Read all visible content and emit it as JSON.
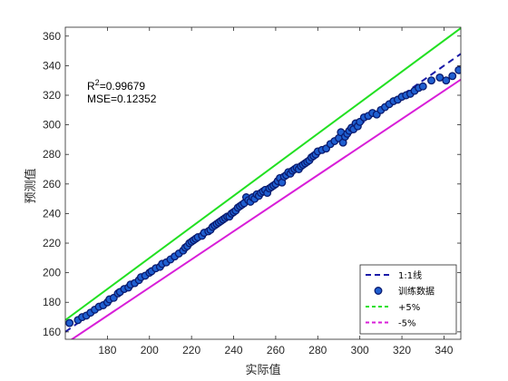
{
  "chart_data": {
    "type": "scatter",
    "title": "",
    "xlabel": "实际值",
    "ylabel": "预测值",
    "xlim": [
      160,
      348
    ],
    "ylim": [
      155,
      366
    ],
    "xticks": [
      180,
      200,
      220,
      240,
      260,
      280,
      300,
      320,
      340
    ],
    "yticks": [
      160,
      180,
      200,
      220,
      240,
      260,
      280,
      300,
      320,
      340,
      360
    ],
    "grid": false,
    "legend_position": "bottom-right",
    "annotations": {
      "r2_prefix": "R",
      "r2_sup": "2",
      "r2_value": "=0.99679",
      "mse": "MSE=0.12352"
    },
    "series": [
      {
        "name": "1:1线",
        "kind": "line",
        "style": "dashed",
        "color": "#1a1aa8",
        "x": [
          160,
          348
        ],
        "y": [
          160,
          348
        ]
      },
      {
        "name": "训练数据",
        "kind": "scatter",
        "color": "#1f5fd0",
        "edge_color": "#0a1a6e",
        "x": [
          162,
          166,
          168,
          170,
          172,
          174,
          176,
          178,
          180,
          181,
          183,
          185,
          186,
          188,
          190,
          191,
          193,
          195,
          196,
          198,
          200,
          201,
          203,
          205,
          206,
          208,
          210,
          212,
          214,
          216,
          217,
          218,
          219,
          220,
          221,
          222,
          223,
          225,
          226,
          228,
          229,
          230,
          231,
          232,
          233,
          234,
          235,
          236,
          237,
          238,
          239,
          240,
          241,
          242,
          243,
          244,
          245,
          246,
          247,
          248,
          249,
          250,
          251,
          252,
          253,
          254,
          255,
          256,
          257,
          258,
          259,
          260,
          261,
          262,
          263,
          264,
          265,
          266,
          267,
          268,
          269,
          270,
          271,
          272,
          273,
          274,
          275,
          276,
          277,
          278,
          279,
          280,
          282,
          284,
          286,
          288,
          290,
          291,
          292,
          293,
          294,
          295,
          296,
          297,
          298,
          299,
          300,
          302,
          304,
          306,
          308,
          310,
          312,
          314,
          316,
          318,
          320,
          322,
          324,
          326,
          328,
          330,
          334,
          338,
          341,
          344,
          347
        ],
        "y": [
          166,
          168,
          170,
          171,
          173,
          175,
          177,
          178,
          180,
          182,
          183,
          186,
          187,
          189,
          190,
          192,
          193,
          195,
          197,
          198,
          200,
          201,
          203,
          204,
          206,
          207,
          209,
          211,
          213,
          215,
          217,
          218,
          220,
          221,
          222,
          223,
          224,
          225,
          227,
          228,
          229,
          231,
          232,
          233,
          234,
          235,
          236,
          237,
          238,
          238,
          240,
          241,
          242,
          244,
          245,
          246,
          247,
          251,
          249,
          248,
          251,
          250,
          253,
          252,
          254,
          255,
          256,
          254,
          257,
          258,
          259,
          260,
          262,
          264,
          261,
          265,
          266,
          268,
          267,
          269,
          270,
          271,
          270,
          272,
          273,
          274,
          275,
          276,
          278,
          279,
          280,
          282,
          283,
          284,
          287,
          289,
          291,
          295,
          288,
          292,
          294,
          296,
          298,
          297,
          301,
          299,
          302,
          305,
          306,
          308,
          307,
          310,
          312,
          314,
          316,
          317,
          319,
          320,
          321,
          323,
          325,
          326,
          330,
          332,
          330,
          333,
          337
        ]
      },
      {
        "name": "+5%",
        "kind": "line",
        "style": "solid",
        "color": "#22e022",
        "x": [
          160,
          348
        ],
        "y": [
          168,
          365.4
        ]
      },
      {
        "name": "-5%",
        "kind": "line",
        "style": "solid",
        "color": "#d81ed8",
        "x": [
          160,
          348
        ],
        "y": [
          152,
          330.6
        ]
      }
    ]
  }
}
